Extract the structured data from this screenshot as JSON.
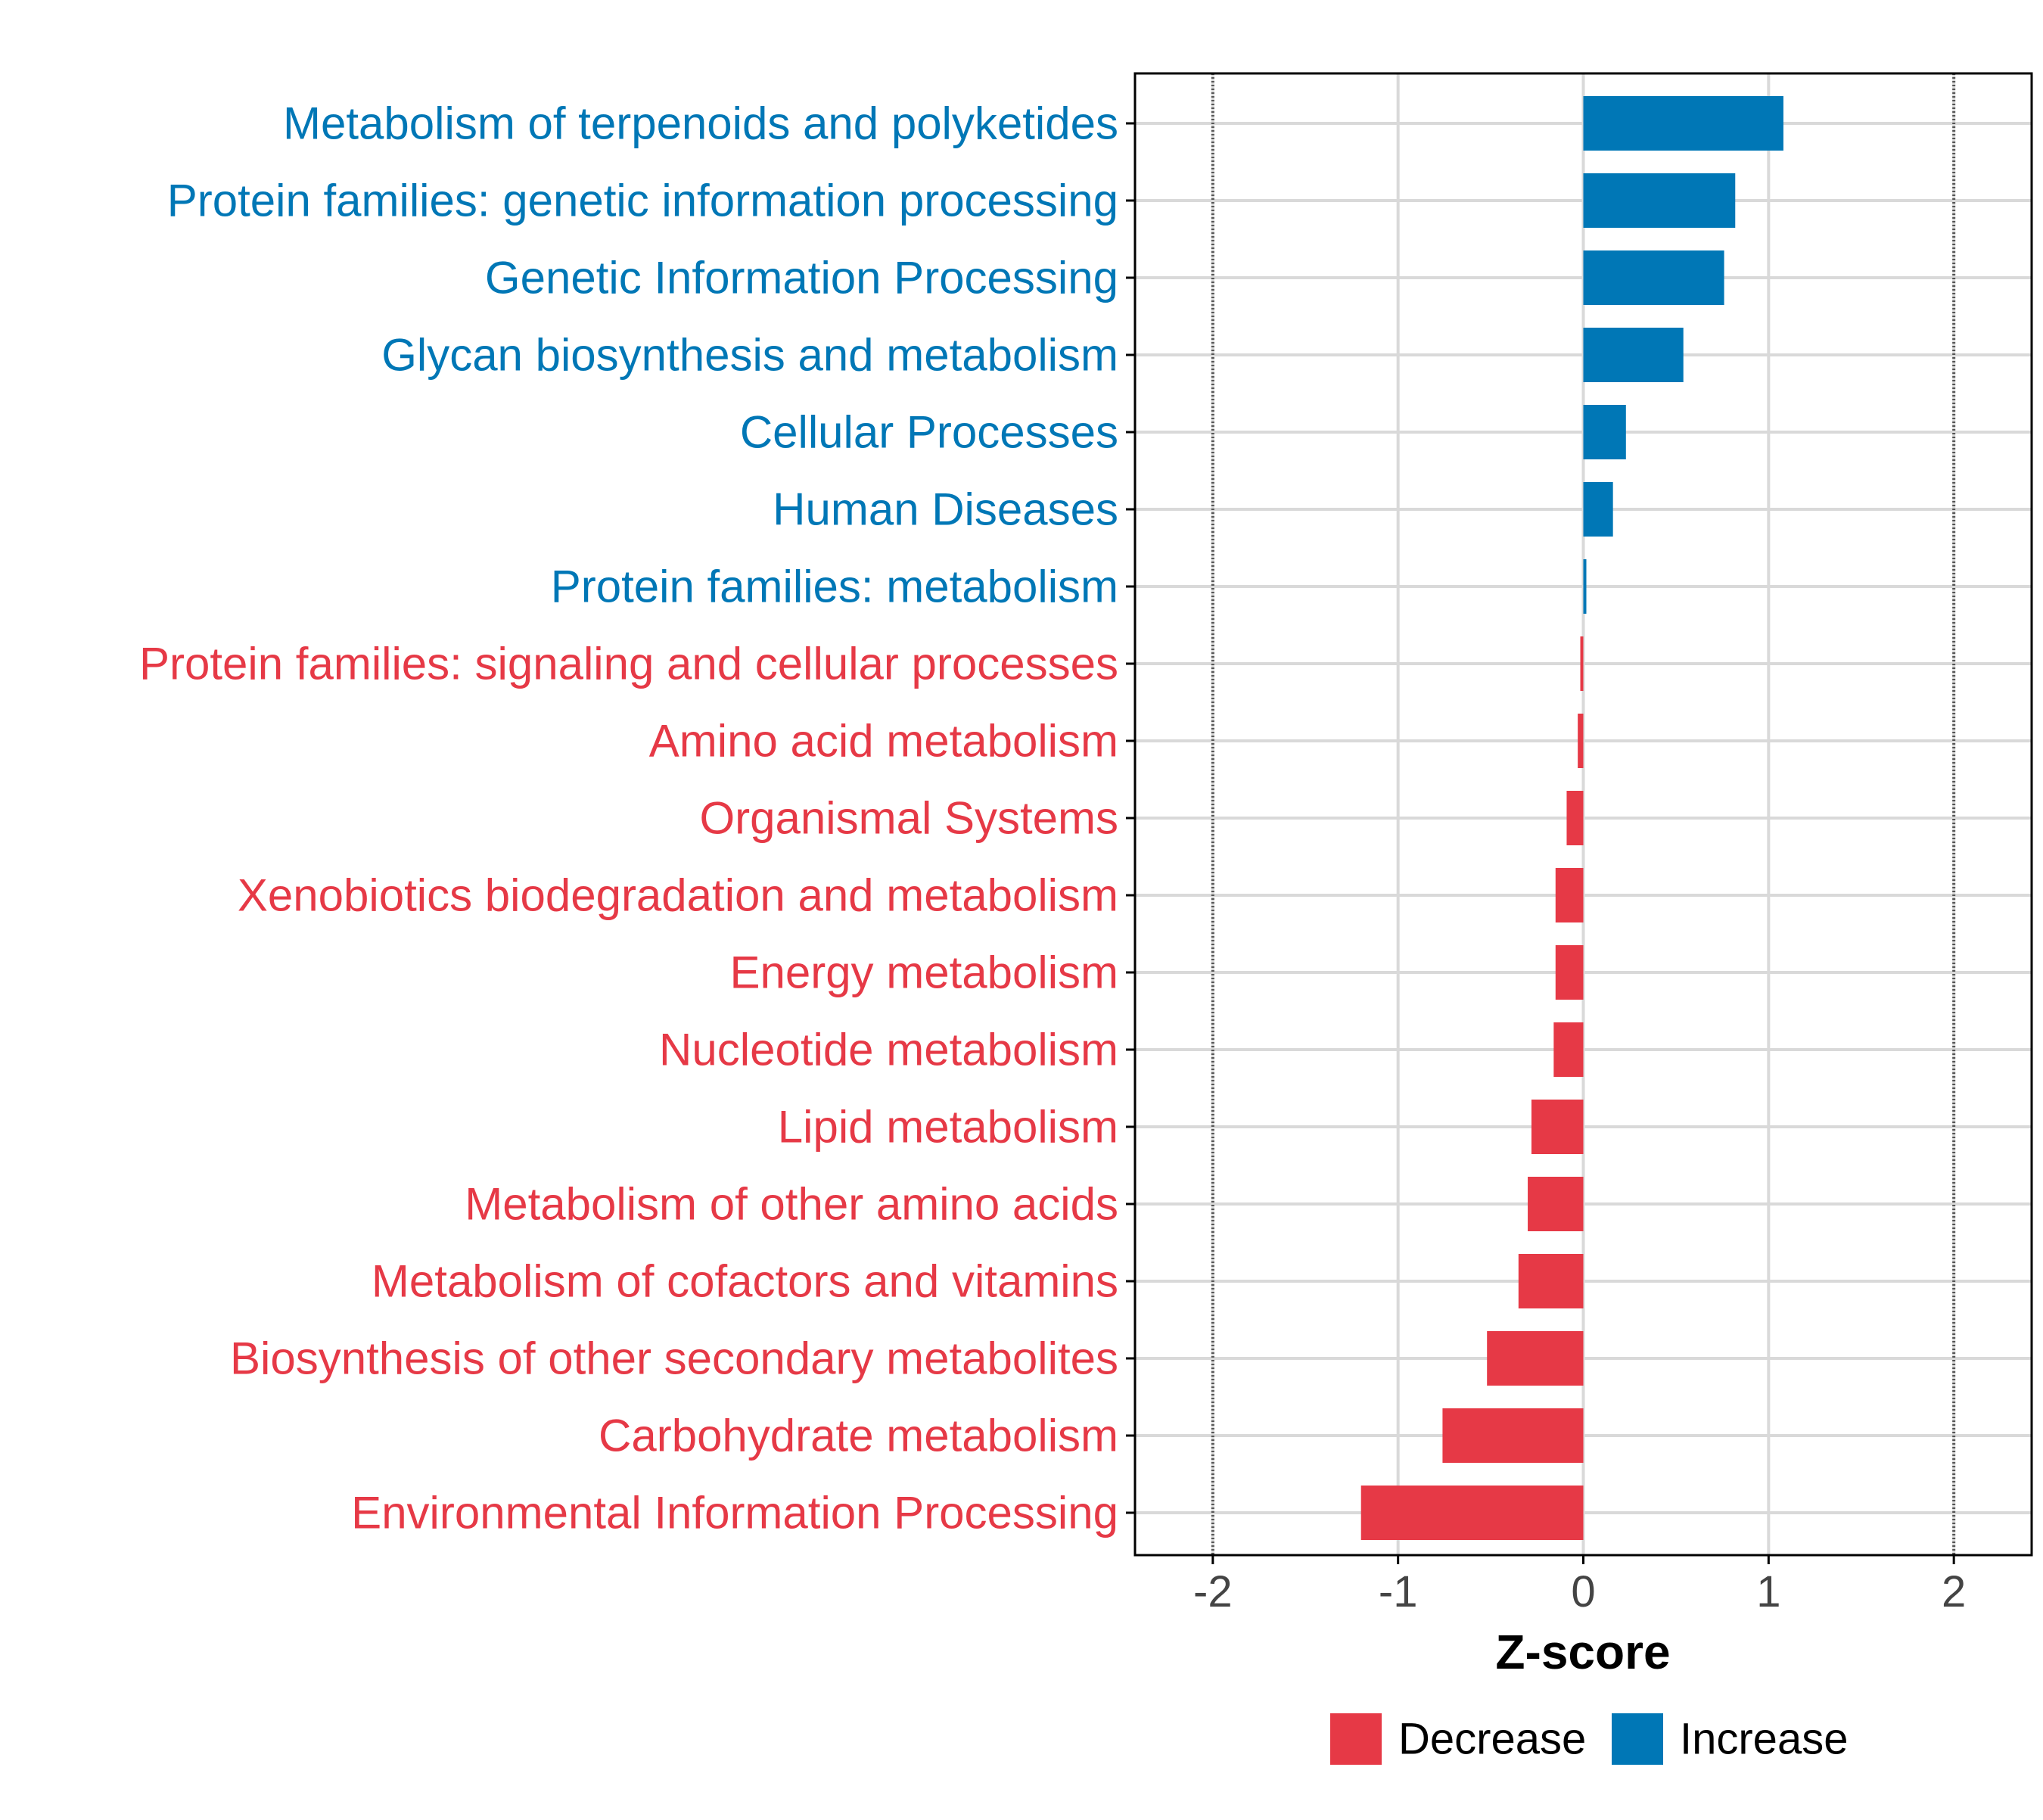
{
  "chart_data": {
    "type": "bar",
    "orientation": "horizontal",
    "title": "",
    "xlabel": "Z-score",
    "ylabel": "",
    "xlim": [
      -2.42,
      2.42
    ],
    "xticks": [
      -2,
      -1,
      0,
      1,
      2
    ],
    "xtick_labels": [
      "-2",
      "-1",
      "0",
      "1",
      "2"
    ],
    "threshold_lines": [
      -2,
      2
    ],
    "grid": true,
    "categories": [
      "Metabolism of terpenoids and polyketides",
      "Protein families: genetic information processing",
      "Genetic Information Processing",
      "Glycan biosynthesis and metabolism",
      "Cellular Processes",
      "Human Diseases",
      "Protein families: metabolism",
      "Protein families: signaling and cellular processes",
      "Amino acid metabolism",
      "Organismal Systems",
      "Xenobiotics biodegradation and metabolism",
      "Energy metabolism",
      "Nucleotide metabolism",
      "Lipid metabolism",
      "Metabolism of other amino acids",
      "Metabolism of cofactors and vitamins",
      "Biosynthesis of other secondary metabolites",
      "Carbohydrate metabolism",
      "Environmental Information Processing"
    ],
    "values": [
      1.08,
      0.82,
      0.76,
      0.54,
      0.23,
      0.16,
      0.015,
      -0.015,
      -0.03,
      -0.09,
      -0.15,
      -0.15,
      -0.16,
      -0.28,
      -0.3,
      -0.35,
      -0.52,
      -0.76,
      -1.2
    ],
    "groups": [
      "Increase",
      "Increase",
      "Increase",
      "Increase",
      "Increase",
      "Increase",
      "Increase",
      "Decrease",
      "Decrease",
      "Decrease",
      "Decrease",
      "Decrease",
      "Decrease",
      "Decrease",
      "Decrease",
      "Decrease",
      "Decrease",
      "Decrease",
      "Decrease"
    ],
    "legend": {
      "position": "bottom",
      "entries": [
        {
          "label": "Decrease",
          "color": "#e63946"
        },
        {
          "label": "Increase",
          "color": "#0077b6"
        }
      ]
    },
    "colors": {
      "Increase": "#0077b6",
      "Decrease": "#e63946",
      "grid": "#d9d9d9",
      "axis": "#000000",
      "tick_text": "#444444",
      "threshold": "#555555"
    }
  }
}
